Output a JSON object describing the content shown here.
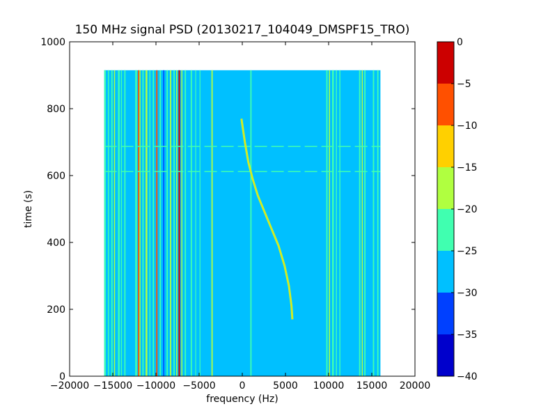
{
  "chart_data": {
    "type": "heatmap",
    "title": "150 MHz signal PSD (20130217_104049_DMSPF15_TRO)",
    "xlabel": "frequency (Hz)",
    "ylabel": "time (s)",
    "xlim": [
      -20000,
      20000
    ],
    "ylim": [
      0,
      1000
    ],
    "x_ticks": [
      -20000,
      -15000,
      -10000,
      -5000,
      0,
      5000,
      10000,
      15000,
      20000
    ],
    "y_ticks": [
      0,
      200,
      400,
      600,
      800,
      1000
    ],
    "data_extent": {
      "x": [
        -16000,
        16000
      ],
      "y": [
        0,
        915
      ]
    },
    "colorbar": {
      "levels": [
        -40,
        -35,
        -30,
        -25,
        -20,
        -15,
        -10,
        -5,
        0
      ],
      "colors": [
        "#0000cc",
        "#0040ff",
        "#00c0ff",
        "#40ffb0",
        "#b0ff40",
        "#ffd000",
        "#ff5000",
        "#cc0000"
      ]
    },
    "background_level_color": "#00c0ff",
    "vertical_lines": [
      {
        "x": -15900,
        "color": "#40ffb0",
        "width_hz": 180
      },
      {
        "x": -15500,
        "color": "#40ffb0",
        "width_hz": 120
      },
      {
        "x": -15100,
        "color": "#40ffb0",
        "width_hz": 150
      },
      {
        "x": -14800,
        "color": "#b0ff40",
        "width_hz": 120
      },
      {
        "x": -14300,
        "color": "#40ffb0",
        "width_hz": 200
      },
      {
        "x": -14000,
        "color": "#40ffb0",
        "width_hz": 120
      },
      {
        "x": -13600,
        "color": "#40ffb0",
        "width_hz": 150
      },
      {
        "x": -12300,
        "color": "#40ffb0",
        "width_hz": 200
      },
      {
        "x": -12000,
        "color": "#ff5000",
        "width_hz": 150
      },
      {
        "x": -11850,
        "color": "#b0ff40",
        "width_hz": 120
      },
      {
        "x": -11500,
        "color": "#40ffb0",
        "width_hz": 150
      },
      {
        "x": -11100,
        "color": "#b0ff40",
        "width_hz": 200
      },
      {
        "x": -10700,
        "color": "#40ffb0",
        "width_hz": 120
      },
      {
        "x": -10300,
        "color": "#40ffb0",
        "width_hz": 150
      },
      {
        "x": -9900,
        "color": "#ff5000",
        "width_hz": 150
      },
      {
        "x": -9500,
        "color": "#40ffb0",
        "width_hz": 150
      },
      {
        "x": -9100,
        "color": "#0040ff",
        "width_hz": 120
      },
      {
        "x": -8700,
        "color": "#40ffb0",
        "width_hz": 150
      },
      {
        "x": -8300,
        "color": "#b0ff40",
        "width_hz": 150
      },
      {
        "x": -7900,
        "color": "#40ffb0",
        "width_hz": 150
      },
      {
        "x": -7600,
        "color": "#b0ff40",
        "width_hz": 120
      },
      {
        "x": -7300,
        "color": "#cc0000",
        "width_hz": 180
      },
      {
        "x": -7000,
        "color": "#b0ff40",
        "width_hz": 120
      },
      {
        "x": -6600,
        "color": "#40ffb0",
        "width_hz": 150
      },
      {
        "x": -5900,
        "color": "#40ffb0",
        "width_hz": 150
      },
      {
        "x": -5400,
        "color": "#40ffb0",
        "width_hz": 100
      },
      {
        "x": -4900,
        "color": "#40ffb0",
        "width_hz": 100
      },
      {
        "x": -3500,
        "color": "#b0ff40",
        "width_hz": 150
      },
      {
        "x": 1000,
        "color": "#40ffb0",
        "width_hz": 150
      },
      {
        "x": 9800,
        "color": "#40ffb0",
        "width_hz": 150
      },
      {
        "x": 10100,
        "color": "#b0ff40",
        "width_hz": 120
      },
      {
        "x": 10500,
        "color": "#40ffb0",
        "width_hz": 200
      },
      {
        "x": 10900,
        "color": "#40ffb0",
        "width_hz": 120
      },
      {
        "x": 11300,
        "color": "#40ffb0",
        "width_hz": 120
      },
      {
        "x": 13600,
        "color": "#40ffb0",
        "width_hz": 150
      },
      {
        "x": 13900,
        "color": "#b0ff40",
        "width_hz": 120
      },
      {
        "x": 14200,
        "color": "#40ffb0",
        "width_hz": 150
      },
      {
        "x": 15200,
        "color": "#40ffb0",
        "width_hz": 150
      },
      {
        "x": 15700,
        "color": "#40ffb0",
        "width_hz": 150
      }
    ],
    "horizontal_lines": [
      {
        "y": 687,
        "color": "#40ffb0"
      },
      {
        "y": 612,
        "color": "#40ffb0"
      }
    ],
    "doppler_trace": {
      "color": "#b0ff40",
      "points": [
        [
          -100,
          770
        ],
        [
          300,
          700
        ],
        [
          700,
          640
        ],
        [
          1200,
          590
        ],
        [
          1800,
          540
        ],
        [
          2600,
          490
        ],
        [
          3400,
          440
        ],
        [
          4200,
          390
        ],
        [
          4900,
          330
        ],
        [
          5400,
          270
        ],
        [
          5700,
          210
        ],
        [
          5800,
          170
        ]
      ]
    }
  }
}
